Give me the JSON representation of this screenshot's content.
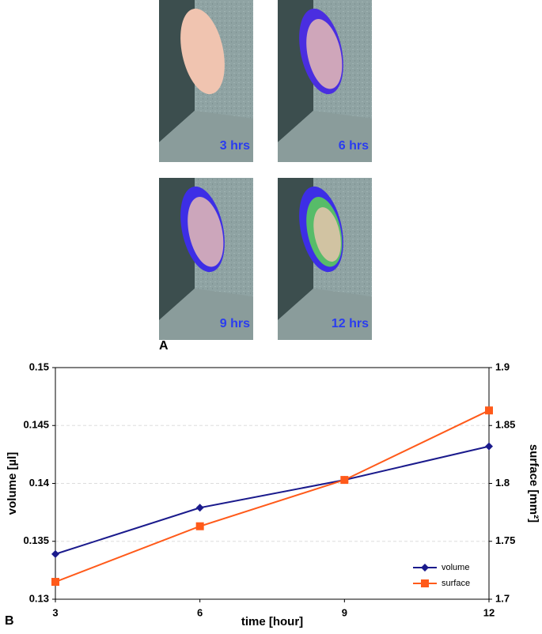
{
  "panel_a": {
    "label": "A",
    "images": [
      {
        "caption": "3 hrs"
      },
      {
        "caption": "6 hrs"
      },
      {
        "caption": "9 hrs"
      },
      {
        "caption": "12 hrs"
      }
    ]
  },
  "chart_data": {
    "type": "line",
    "panel_label": "B",
    "x_label": "time [hour]",
    "y_label": "volume [µl]",
    "y2_label": "surface [mm²]",
    "x": [
      3,
      6,
      9,
      12
    ],
    "xlim": [
      3,
      12
    ],
    "xticks": [
      3,
      6,
      9,
      12
    ],
    "ylim": [
      0.13,
      0.15
    ],
    "yticks": [
      0.13,
      0.135,
      0.14,
      0.145,
      0.15
    ],
    "y2lim": [
      1.7,
      1.9
    ],
    "y2ticks": [
      1.7,
      1.75,
      1.8,
      1.85,
      1.9
    ],
    "grid": true,
    "legend": "lower right",
    "series": [
      {
        "name": "volume",
        "color": "#1a1a8c",
        "marker": "diamond",
        "values": [
          0.1339,
          0.1379,
          0.1403,
          0.1432
        ]
      },
      {
        "name": "surface",
        "color": "#ff5a1a",
        "marker": "square",
        "axis": "y2",
        "values": [
          1.715,
          1.763,
          1.803,
          1.863
        ]
      }
    ]
  }
}
